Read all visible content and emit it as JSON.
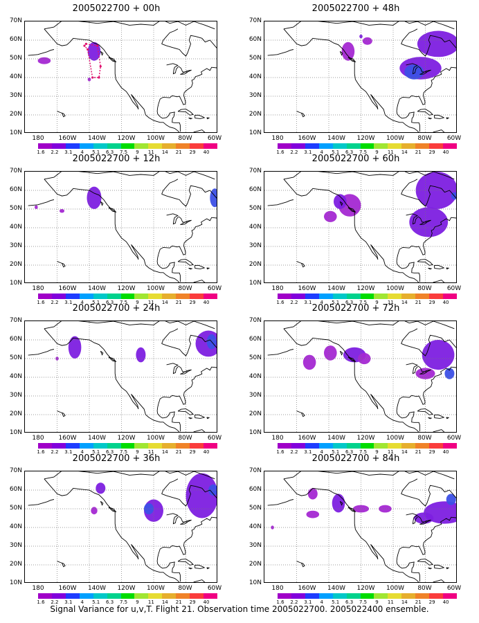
{
  "panels": [
    {
      "title": "2005022700 + 00h"
    },
    {
      "title": "2005022700 + 48h"
    },
    {
      "title": "2005022700 + 12h"
    },
    {
      "title": "2005022700 + 60h"
    },
    {
      "title": "2005022700 + 24h"
    },
    {
      "title": "2005022700 + 72h"
    },
    {
      "title": "2005022700 + 36h"
    },
    {
      "title": "2005022700 + 84h"
    }
  ],
  "y_axis": [
    "70N",
    "60N",
    "50N",
    "40N",
    "30N",
    "20N",
    "10N"
  ],
  "x_axis": [
    "180",
    "160W",
    "140W",
    "120W",
    "100W",
    "80W",
    "60W"
  ],
  "colorbar": {
    "labels": [
      "1.6",
      "2.2",
      "3.1",
      "4",
      "5.1",
      "6.3",
      "7.5",
      "9",
      "11",
      "14",
      "21",
      "29",
      "40"
    ],
    "colors": [
      "#a000c8",
      "#8200dc",
      "#1e3cff",
      "#00a0ff",
      "#00c8c8",
      "#00d28c",
      "#00dc00",
      "#a0e632",
      "#e6dc32",
      "#e6af2d",
      "#f08228",
      "#fa3c3c",
      "#f00082"
    ]
  },
  "map_data": {
    "projection": "lat-lon",
    "lon_range": [
      -180,
      -60
    ],
    "lat_range": [
      10,
      70
    ],
    "grid": "dotted"
  },
  "caption": "Signal Variance for u,v,T. Flight 21. Observation time 2005022700. 2005022400 ensemble."
}
